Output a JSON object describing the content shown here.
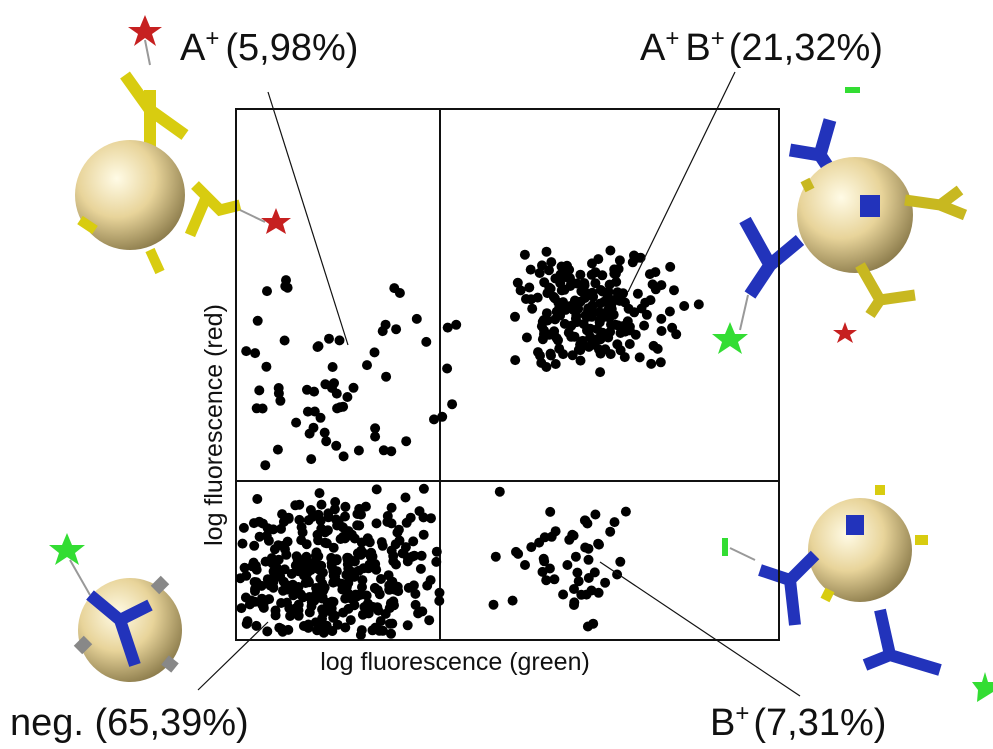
{
  "labels": {
    "a_pos": [
      "A",
      "+",
      "(5,98%)"
    ],
    "ab_pos": [
      "A",
      "+",
      "B",
      "+",
      "(21,32%)"
    ],
    "neg": [
      "neg. (65,39%)"
    ],
    "b_pos": [
      "B",
      "+",
      "(7,31%)"
    ]
  },
  "axes": {
    "x_label": "log fluorescence (green)",
    "y_label": "log fluorescence (red)"
  }
}
